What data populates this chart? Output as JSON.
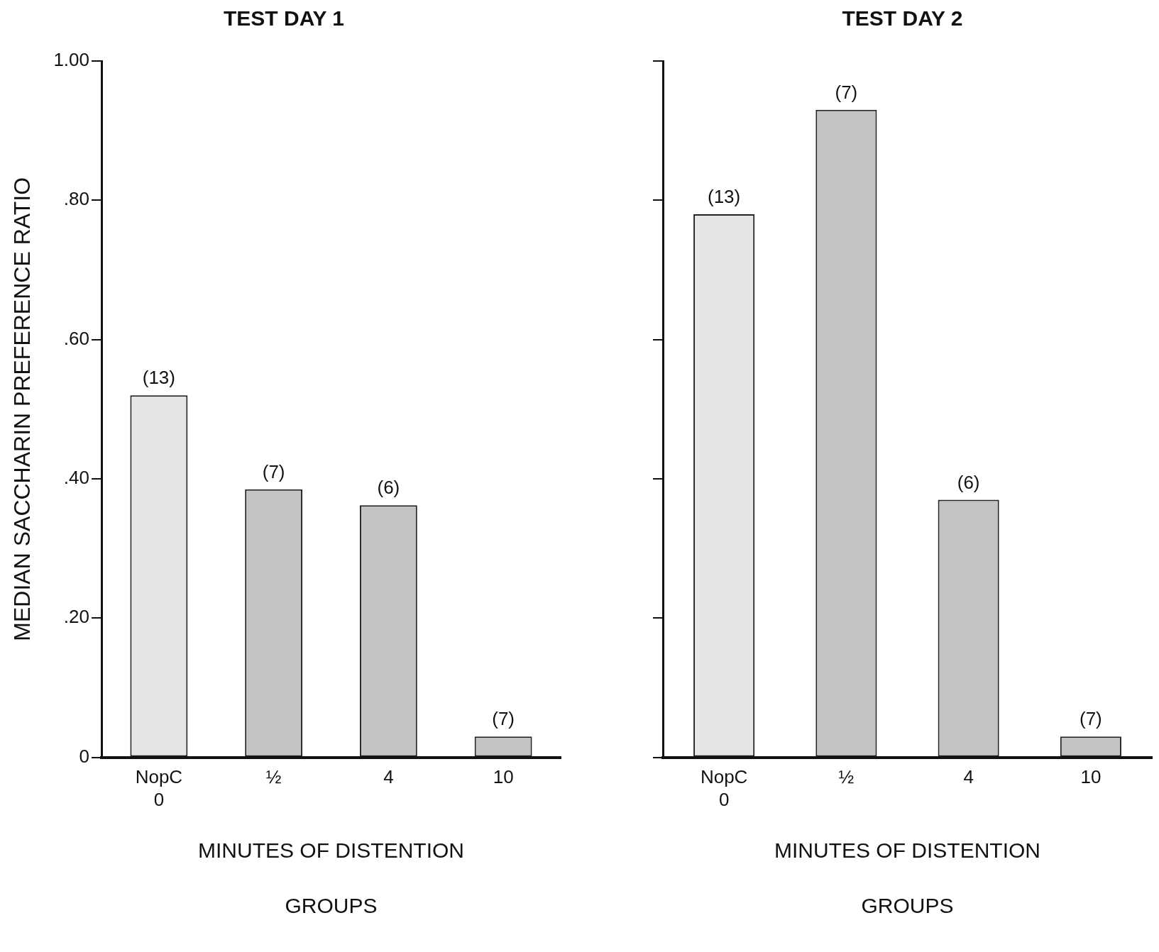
{
  "chart_data": [
    {
      "type": "bar",
      "title": "TEST DAY 1",
      "ylabel": "MEDIAN SACCHARIN PREFERENCE RATIO",
      "xlabel": "MINUTES OF DISTENTION\nGROUPS",
      "categories": [
        "NopC\n0",
        "½",
        "4",
        "10"
      ],
      "values": [
        0.52,
        0.385,
        0.362,
        0.03
      ],
      "colors": [
        "#e6e6e6",
        "#c4c4c4",
        "#c4c4c4",
        "#c4c4c4"
      ],
      "ylim": [
        0,
        1
      ],
      "yticks": [
        0,
        {
          "value": 0.2,
          "label": ".20"
        },
        {
          "value": 0.4,
          "label": ".40"
        },
        {
          "value": 0.6,
          "label": ".60"
        },
        {
          "value": 0.8,
          "label": ".80"
        },
        {
          "value": 1,
          "label": "1.00"
        }
      ],
      "grid": false,
      "annotations": [
        {
          "text": "(13)",
          "x": "NopC\n0",
          "y": 0.52
        },
        {
          "text": "(7)",
          "x": "½",
          "y": 0.385
        },
        {
          "text": "(6)",
          "x": "4",
          "y": 0.362
        },
        {
          "text": "(7)",
          "x": "10",
          "y": 0.03
        }
      ]
    },
    {
      "type": "bar",
      "title": "TEST DAY 2",
      "xlabel": "MINUTES OF DISTENTION\nGROUPS",
      "categories": [
        "NopC\n0",
        "½",
        "4",
        "10"
      ],
      "values": [
        0.78,
        0.93,
        0.37,
        0.03
      ],
      "colors": [
        "#e6e6e6",
        "#c4c4c4",
        "#c4c4c4",
        "#c4c4c4"
      ],
      "ylim": [
        0,
        1
      ],
      "yticks": [
        {
          "value": 0,
          "label": null
        },
        {
          "value": 0.2,
          "label": null
        },
        {
          "value": 0.4,
          "label": null
        },
        {
          "value": 0.6,
          "label": null
        },
        {
          "value": 0.8,
          "label": null
        },
        {
          "value": 1,
          "label": null
        }
      ],
      "grid": false,
      "tick_labels": "x",
      "annotations": [
        {
          "text": "(13)",
          "x": "NopC\n0",
          "y": 0.78
        },
        {
          "text": "(7)",
          "x": "½",
          "y": 0.93
        },
        {
          "text": "(6)",
          "x": "4",
          "y": 0.37
        },
        {
          "text": "(7)",
          "x": "10",
          "y": 0.03
        }
      ]
    }
  ]
}
